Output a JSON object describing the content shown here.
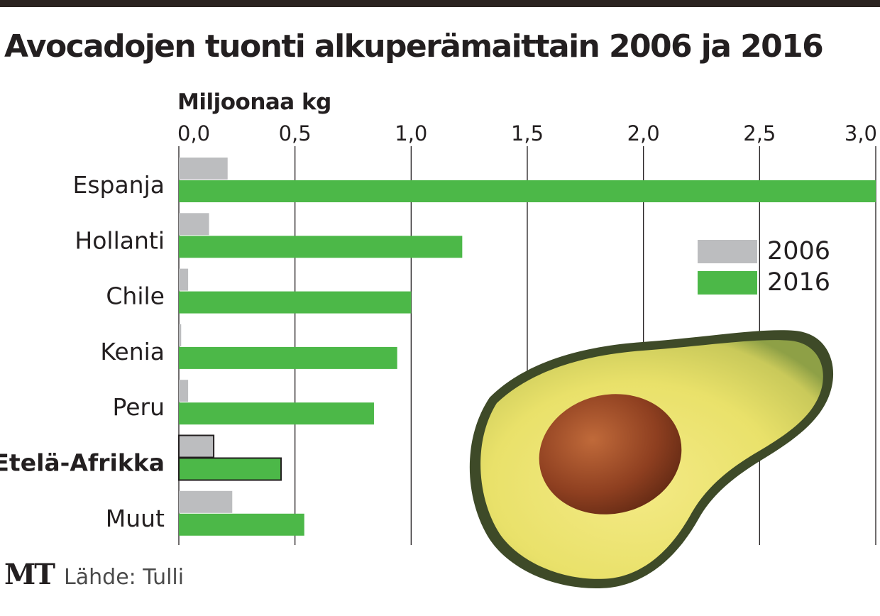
{
  "title": "Avocadojen tuonti alkuperämaittain 2006 ja 2016",
  "colors": {
    "series_2006": "#bcbdbf",
    "series_2016": "#4cb848",
    "text": "#231f20",
    "highlight_border": "#231f20"
  },
  "footer": {
    "logo": "MT",
    "source": "Lähde: Tulli"
  },
  "chart_data": {
    "type": "bar",
    "orientation": "horizontal",
    "title": "Avocadojen tuonti alkuperämaittain 2006 ja 2016",
    "xlabel": "Miljoonaa kg",
    "ylabel": "",
    "xlim": [
      0,
      3.0
    ],
    "xticks": [
      "0,0",
      "0,5",
      "1,0",
      "1,5",
      "2,0",
      "2,5",
      "3,0"
    ],
    "grid": true,
    "legend_position": "right",
    "categories": [
      "Espanja",
      "Hollanti",
      "Chile",
      "Kenia",
      "Peru",
      "Etelä-Afrikka",
      "Muut"
    ],
    "highlighted_category": "Etelä-Afrikka",
    "series": [
      {
        "name": "2006",
        "values": [
          0.21,
          0.13,
          0.04,
          0.01,
          0.04,
          0.15,
          0.23
        ]
      },
      {
        "name": "2016",
        "values": [
          3.0,
          1.22,
          1.0,
          0.94,
          0.84,
          0.44,
          0.54
        ]
      }
    ]
  }
}
